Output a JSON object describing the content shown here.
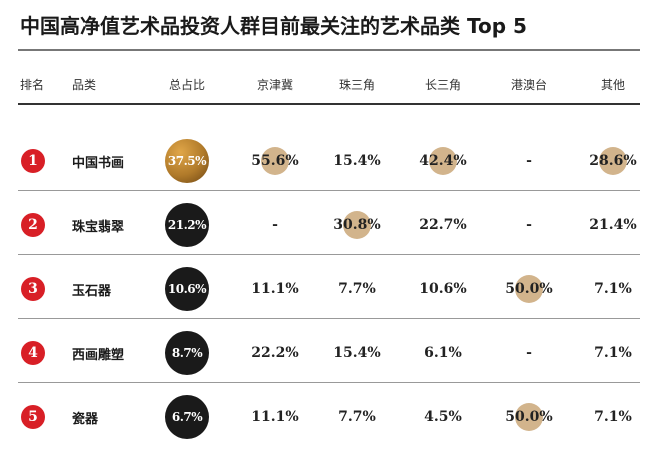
{
  "title": "中国高净值艺术品投资人群目前最关注的艺术品类 Top 5",
  "colors": {
    "rank_badge": "#d81f26",
    "bubble": "#d2b48c",
    "total_top": "#b07a2a",
    "total_other": "#1a1a1a"
  },
  "chart_data": {
    "type": "table",
    "title": "中国高净值艺术品投资人群目前最关注的艺术品类 Top 5",
    "columns": [
      "排名",
      "品类",
      "总占比",
      "京津冀",
      "珠三角",
      "长三角",
      "港澳台",
      "其他"
    ],
    "region_keys": [
      "jjj",
      "zsj",
      "csj",
      "gat",
      "other"
    ],
    "rows": [
      {
        "rank": "1",
        "category": "中国书画",
        "total": 37.5,
        "total_label": "37.5%",
        "values": {
          "jjj": "55.6%",
          "zsj": "15.4%",
          "csj": "42.4%",
          "gat": "-",
          "other": "28.6%"
        },
        "numbers": {
          "jjj": 55.6,
          "zsj": 15.4,
          "csj": 42.4,
          "gat": null,
          "other": 28.6
        }
      },
      {
        "rank": "2",
        "category": "珠宝翡翠",
        "total": 21.2,
        "total_label": "21.2%",
        "values": {
          "jjj": "-",
          "zsj": "30.8%",
          "csj": "22.7%",
          "gat": "-",
          "other": "21.4%"
        },
        "numbers": {
          "jjj": null,
          "zsj": 30.8,
          "csj": 22.7,
          "gat": null,
          "other": 21.4
        }
      },
      {
        "rank": "3",
        "category": "玉石器",
        "total": 10.6,
        "total_label": "10.6%",
        "values": {
          "jjj": "11.1%",
          "zsj": "7.7%",
          "csj": "10.6%",
          "gat": "50.0%",
          "other": "7.1%"
        },
        "numbers": {
          "jjj": 11.1,
          "zsj": 7.7,
          "csj": 10.6,
          "gat": 50.0,
          "other": 7.1
        }
      },
      {
        "rank": "4",
        "category": "西画雕塑",
        "total": 8.7,
        "total_label": "8.7%",
        "values": {
          "jjj": "22.2%",
          "zsj": "15.4%",
          "csj": "6.1%",
          "gat": "-",
          "other": "7.1%"
        },
        "numbers": {
          "jjj": 22.2,
          "zsj": 15.4,
          "csj": 6.1,
          "gat": null,
          "other": 7.1
        }
      },
      {
        "rank": "5",
        "category": "瓷器",
        "total": 6.7,
        "total_label": "6.7%",
        "values": {
          "jjj": "11.1%",
          "zsj": "7.7%",
          "csj": "4.5%",
          "gat": "50.0%",
          "other": "7.1%"
        },
        "numbers": {
          "jjj": 11.1,
          "zsj": 7.7,
          "csj": 4.5,
          "gat": 50.0,
          "other": 7.1
        }
      }
    ],
    "highlighted": [
      {
        "row": 0,
        "col": "jjj"
      },
      {
        "row": 0,
        "col": "csj"
      },
      {
        "row": 0,
        "col": "other"
      },
      {
        "row": 1,
        "col": "zsj"
      },
      {
        "row": 2,
        "col": "gat"
      },
      {
        "row": 4,
        "col": "gat"
      }
    ]
  }
}
